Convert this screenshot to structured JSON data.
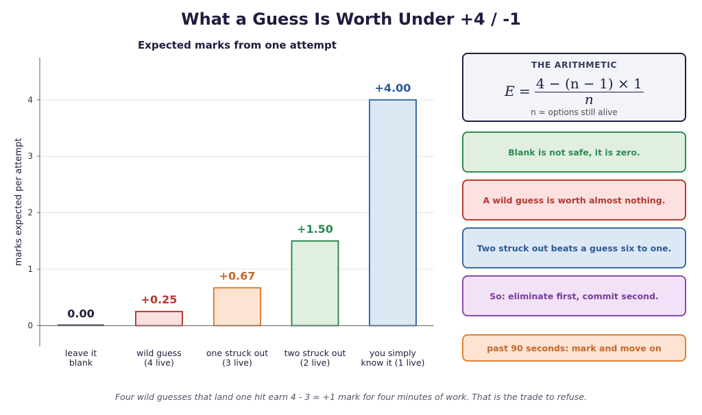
{
  "title": "What a Guess Is Worth Under +4 / -1",
  "chart_data": {
    "type": "bar",
    "title": "Expected marks from one attempt",
    "xlabel": "",
    "ylabel": "marks expected per attempt",
    "ylim": [
      -0.37,
      4.75
    ],
    "yticks": [
      0,
      1,
      2,
      3,
      4
    ],
    "grid": true,
    "categories": [
      [
        "leave it",
        "blank"
      ],
      [
        "wild guess",
        "(4 live)"
      ],
      [
        "one struck out",
        "(3 live)"
      ],
      [
        "two struck out",
        "(2 live)"
      ],
      [
        "you simply",
        "know it (1 live)"
      ]
    ],
    "values": [
      0.0,
      0.25,
      0.67,
      1.5,
      4.0
    ],
    "value_labels": [
      "0.00",
      "+0.25",
      "+0.67",
      "+1.50",
      "+4.00"
    ],
    "bar_fill": [
      "#1f1d3d",
      "#fde0e0",
      "#fee3d2",
      "#e0efe0",
      "#dde8f5"
    ],
    "bar_stroke": [
      "#1f1d3d",
      "#b83a30",
      "#e08030",
      "#2f8a55",
      "#3a6aaa"
    ],
    "label_colors": [
      "#1f1d3d",
      "#b23a30",
      "#c5682a",
      "#2f8a55",
      "#2c5a9a"
    ]
  },
  "arithmetic": {
    "title": "THE ARITHMETIC",
    "formula_lhs": "E =",
    "formula_num": "4 − (n − 1) × 1",
    "formula_den": "n",
    "note": "n = options still alive"
  },
  "takeaways": [
    {
      "text": "Blank is not safe, it is zero.",
      "color": "#2f8a55",
      "bg": "#e0efe0",
      "border": "#2f8a55"
    },
    {
      "text": "A wild guess is worth almost nothing.",
      "color": "#b23a30",
      "bg": "#fde0e0",
      "border": "#b83a30"
    },
    {
      "text": "Two struck out beats a guess six to one.",
      "color": "#2c5a9a",
      "bg": "#dde8f5",
      "border": "#3a6aaa"
    },
    {
      "text": "So: eliminate first, commit second.",
      "color": "#7b3aa0",
      "bg": "#f2e2f7",
      "border": "#8a4aae"
    },
    {
      "text": "past 90 seconds: mark and move on",
      "color": "#c5682a",
      "bg": "#fee3d2",
      "border": "#e08030"
    }
  ],
  "caption": "Four wild guesses that land one hit earn 4 - 3 = +1 mark for four minutes of work. That is the trade to refuse."
}
